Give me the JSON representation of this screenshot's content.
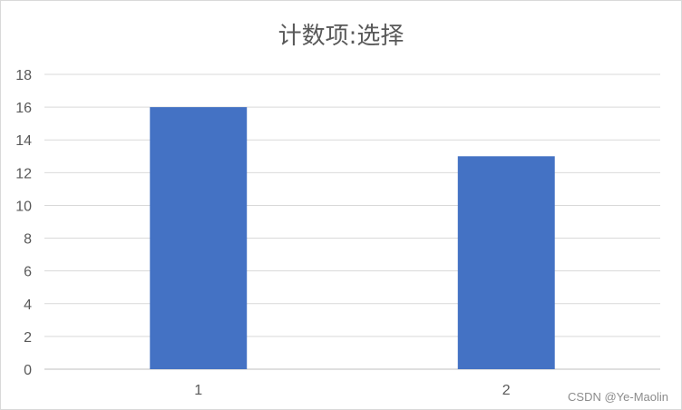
{
  "chart_data": {
    "type": "bar",
    "title": "计数项:选择",
    "categories": [
      "1",
      "2"
    ],
    "values": [
      16,
      13
    ],
    "ylim": [
      0,
      18
    ],
    "yticks": [
      0,
      2,
      4,
      6,
      8,
      10,
      12,
      14,
      16,
      18
    ],
    "grid": true,
    "bar_color": "#4472C4"
  },
  "watermark": "CSDN @Ye-Maolin"
}
